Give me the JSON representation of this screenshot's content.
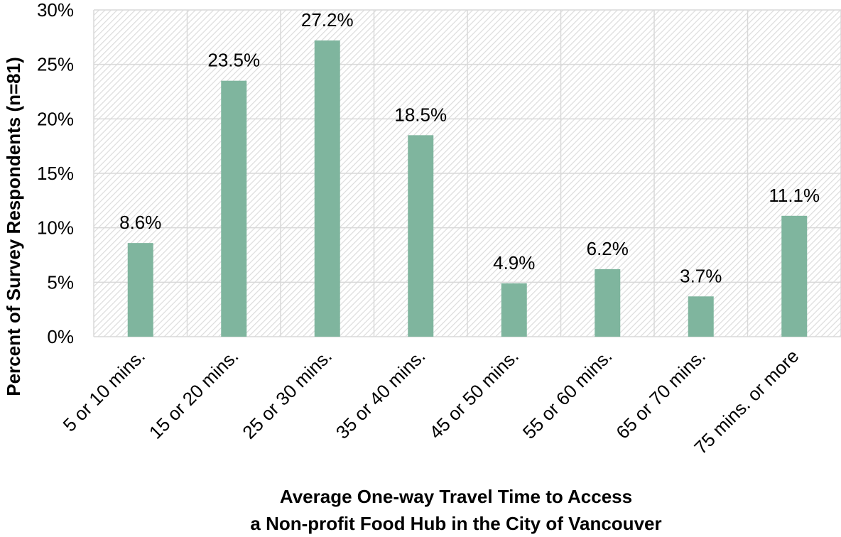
{
  "chart_data": {
    "type": "bar",
    "categories": [
      "5 or 10 mins.",
      "15 or 20 mins.",
      "25 or 30 mins.",
      "35 or 40 mins.",
      "45 or 50 mins.",
      "55 or 60 mins.",
      "65 or 70 mins.",
      "75 mins. or more"
    ],
    "values": [
      8.6,
      23.5,
      27.2,
      18.5,
      4.9,
      6.2,
      3.7,
      11.1
    ],
    "data_labels": [
      "8.6%",
      "23.5%",
      "27.2%",
      "18.5%",
      "4.9%",
      "6.2%",
      "3.7%",
      "11.1%"
    ],
    "y_ticks": [
      "0%",
      "5%",
      "10%",
      "15%",
      "20%",
      "25%",
      "30%"
    ],
    "ylim": [
      0,
      30
    ],
    "ylabel": "Percent of Survey Respondents (n=81)",
    "xlabel_lines": [
      "Average One-way Travel Time to Access",
      "a Non-profit Food Hub in the City of Vancouver"
    ],
    "grid": true,
    "legend": "none",
    "colors": {
      "bar": "#7fb59e",
      "grid": "#d9d9d9",
      "hatch": "#dedede"
    }
  }
}
